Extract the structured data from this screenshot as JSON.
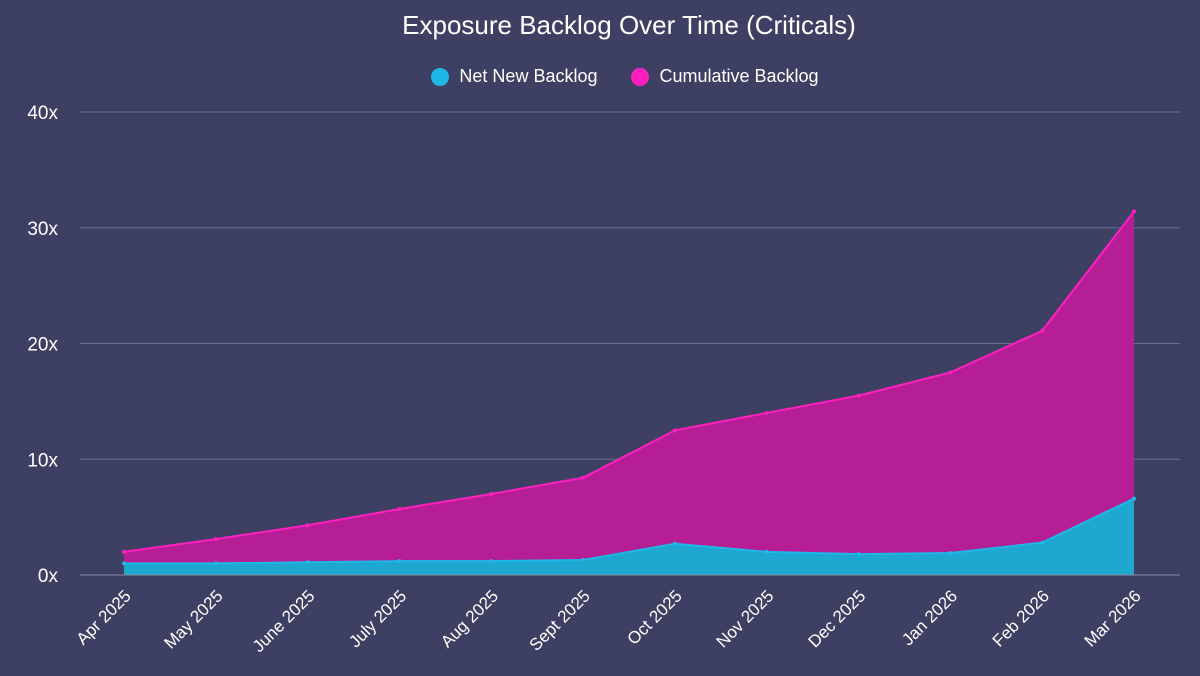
{
  "chart_data": {
    "type": "area",
    "title": "Exposure Backlog Over Time (Criticals)",
    "xlabel": "",
    "ylabel": "",
    "categories": [
      "Apr 2025",
      "May 2025",
      "June 2025",
      "July 2025",
      "Aug 2025",
      "Sept 2025",
      "Oct 2025",
      "Nov 2025",
      "Dec 2025",
      "Jan 2026",
      "Feb 2026",
      "Mar 2026"
    ],
    "ylim": [
      0,
      40
    ],
    "yticks": [
      0,
      10,
      20,
      30,
      40
    ],
    "ytick_labels": [
      "0x",
      "10x",
      "20x",
      "30x",
      "40x"
    ],
    "grid": true,
    "legend_position": "top-center",
    "series": [
      {
        "name": "Net New Backlog",
        "color": "#1fb8e6",
        "fill": "#1ea8cf",
        "values": [
          1.0,
          1.0,
          1.1,
          1.2,
          1.2,
          1.3,
          2.7,
          2.0,
          1.8,
          1.9,
          2.8,
          6.6
        ]
      },
      {
        "name": "Cumulative Backlog",
        "color": "#ff1fbf",
        "fill": "#b61e96",
        "values": [
          2.0,
          3.1,
          4.3,
          5.7,
          7.0,
          8.4,
          12.5,
          14.0,
          15.5,
          17.5,
          21.1,
          31.4
        ]
      }
    ]
  }
}
